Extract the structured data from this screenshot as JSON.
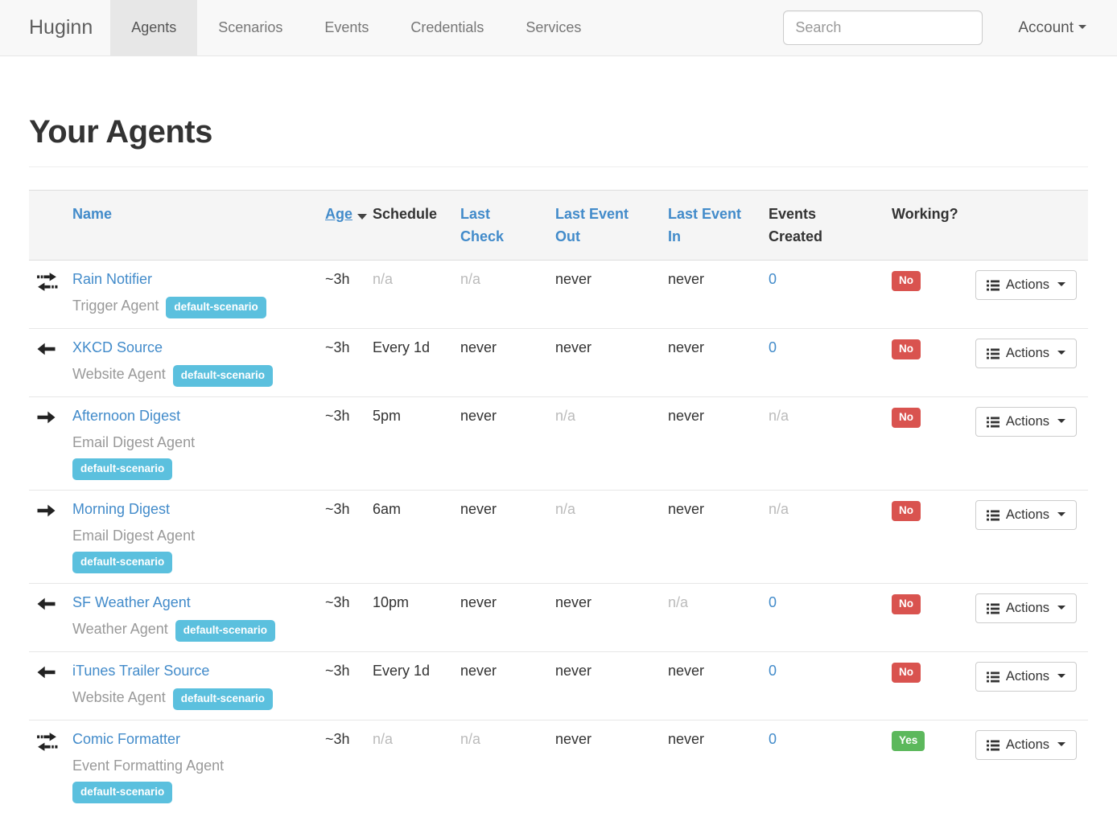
{
  "navbar": {
    "brand": "Huginn",
    "items": [
      {
        "label": "Agents",
        "active": true
      },
      {
        "label": "Scenarios",
        "active": false
      },
      {
        "label": "Events",
        "active": false
      },
      {
        "label": "Credentials",
        "active": false
      },
      {
        "label": "Services",
        "active": false
      }
    ],
    "search_placeholder": "Search",
    "account_label": "Account"
  },
  "page": {
    "title": "Your Agents"
  },
  "table": {
    "columns": [
      {
        "label": "Name",
        "sortable": true
      },
      {
        "label": "Age",
        "sortable": true,
        "sorted": "desc"
      },
      {
        "label": "Schedule",
        "sortable": false
      },
      {
        "label": "Last\nCheck",
        "sortable": true
      },
      {
        "label": "Last Event\nOut",
        "sortable": true
      },
      {
        "label": "Last Event\nIn",
        "sortable": true
      },
      {
        "label": "Events\nCreated",
        "sortable": false
      },
      {
        "label": "Working?",
        "sortable": false
      }
    ],
    "actions_label": "Actions",
    "rows": [
      {
        "icon": "exchange",
        "name": "Rain Notifier",
        "type": "Trigger Agent",
        "scenario": "default-scenario",
        "age": "~3h",
        "schedule": "n/a",
        "last_check": "n/a",
        "last_event_out": "never",
        "last_event_in": "never",
        "events_created": "0",
        "working": "No"
      },
      {
        "icon": "arrow-left",
        "name": "XKCD Source",
        "type": "Website Agent",
        "scenario": "default-scenario",
        "age": "~3h",
        "schedule": "Every 1d",
        "last_check": "never",
        "last_event_out": "never",
        "last_event_in": "never",
        "events_created": "0",
        "working": "No"
      },
      {
        "icon": "arrow-right",
        "name": "Afternoon Digest",
        "type": "Email Digest Agent",
        "scenario": "default-scenario",
        "age": "~3h",
        "schedule": "5pm",
        "last_check": "never",
        "last_event_out": "n/a",
        "last_event_in": "never",
        "events_created": "n/a",
        "working": "No"
      },
      {
        "icon": "arrow-right",
        "name": "Morning Digest",
        "type": "Email Digest Agent",
        "scenario": "default-scenario",
        "age": "~3h",
        "schedule": "6am",
        "last_check": "never",
        "last_event_out": "n/a",
        "last_event_in": "never",
        "events_created": "n/a",
        "working": "No"
      },
      {
        "icon": "arrow-left",
        "name": "SF Weather Agent",
        "type": "Weather Agent",
        "scenario": "default-scenario",
        "age": "~3h",
        "schedule": "10pm",
        "last_check": "never",
        "last_event_out": "never",
        "last_event_in": "n/a",
        "events_created": "0",
        "working": "No"
      },
      {
        "icon": "arrow-left",
        "name": "iTunes Trailer Source",
        "type": "Website Agent",
        "scenario": "default-scenario",
        "age": "~3h",
        "schedule": "Every 1d",
        "last_check": "never",
        "last_event_out": "never",
        "last_event_in": "never",
        "events_created": "0",
        "working": "No"
      },
      {
        "icon": "exchange",
        "name": "Comic Formatter",
        "type": "Event Formatting Agent",
        "scenario": "default-scenario",
        "age": "~3h",
        "schedule": "n/a",
        "last_check": "n/a",
        "last_event_out": "never",
        "last_event_in": "never",
        "events_created": "0",
        "working": "Yes"
      }
    ]
  },
  "colors": {
    "link_blue": "#428bca",
    "badge_info": "#5bc0de",
    "label_danger": "#d9534f",
    "label_success": "#5cb85c",
    "navbar_bg": "#f8f8f8",
    "active_tab_bg": "#e7e7e7",
    "muted_text": "#bbbbbb"
  }
}
